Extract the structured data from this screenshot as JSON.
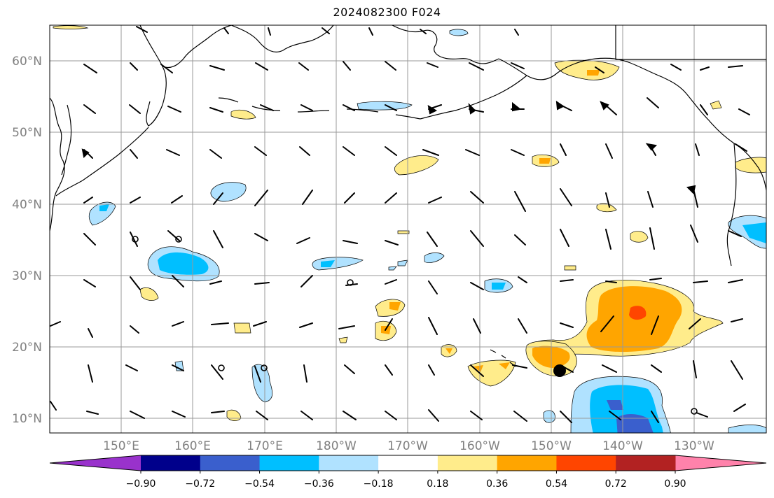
{
  "title": "2024082300 F024",
  "map": {
    "projection": "PlateCarree",
    "lon_range_east": [
      140,
      240
    ],
    "lat_range": [
      8,
      65
    ],
    "gridlines": true,
    "lat_labels": [
      "10°N",
      "20°N",
      "30°N",
      "40°N",
      "50°N",
      "60°N"
    ],
    "lon_labels": [
      "150°E",
      "160°E",
      "170°E",
      "180°W",
      "170°W",
      "160°W",
      "150°W",
      "140°W",
      "130°W"
    ],
    "colors": {
      "land_outline": "#000000",
      "grid": "#999999",
      "label": "#808080"
    }
  },
  "colorbar": {
    "orientation": "horizontal",
    "extend": "both",
    "colors": [
      "#9932cc",
      "#00008b",
      "#3a5fcd",
      "#00bfff",
      "#b0e2ff",
      "#ffffff",
      "#ffec8b",
      "#ffa500",
      "#ff4500",
      "#b22222",
      "#ff82ab"
    ],
    "tick_labels": [
      "−0.90",
      "−0.72",
      "−0.54",
      "−0.36",
      "−0.18",
      "0.18",
      "0.36",
      "0.54",
      "0.72",
      "0.90"
    ]
  }
}
